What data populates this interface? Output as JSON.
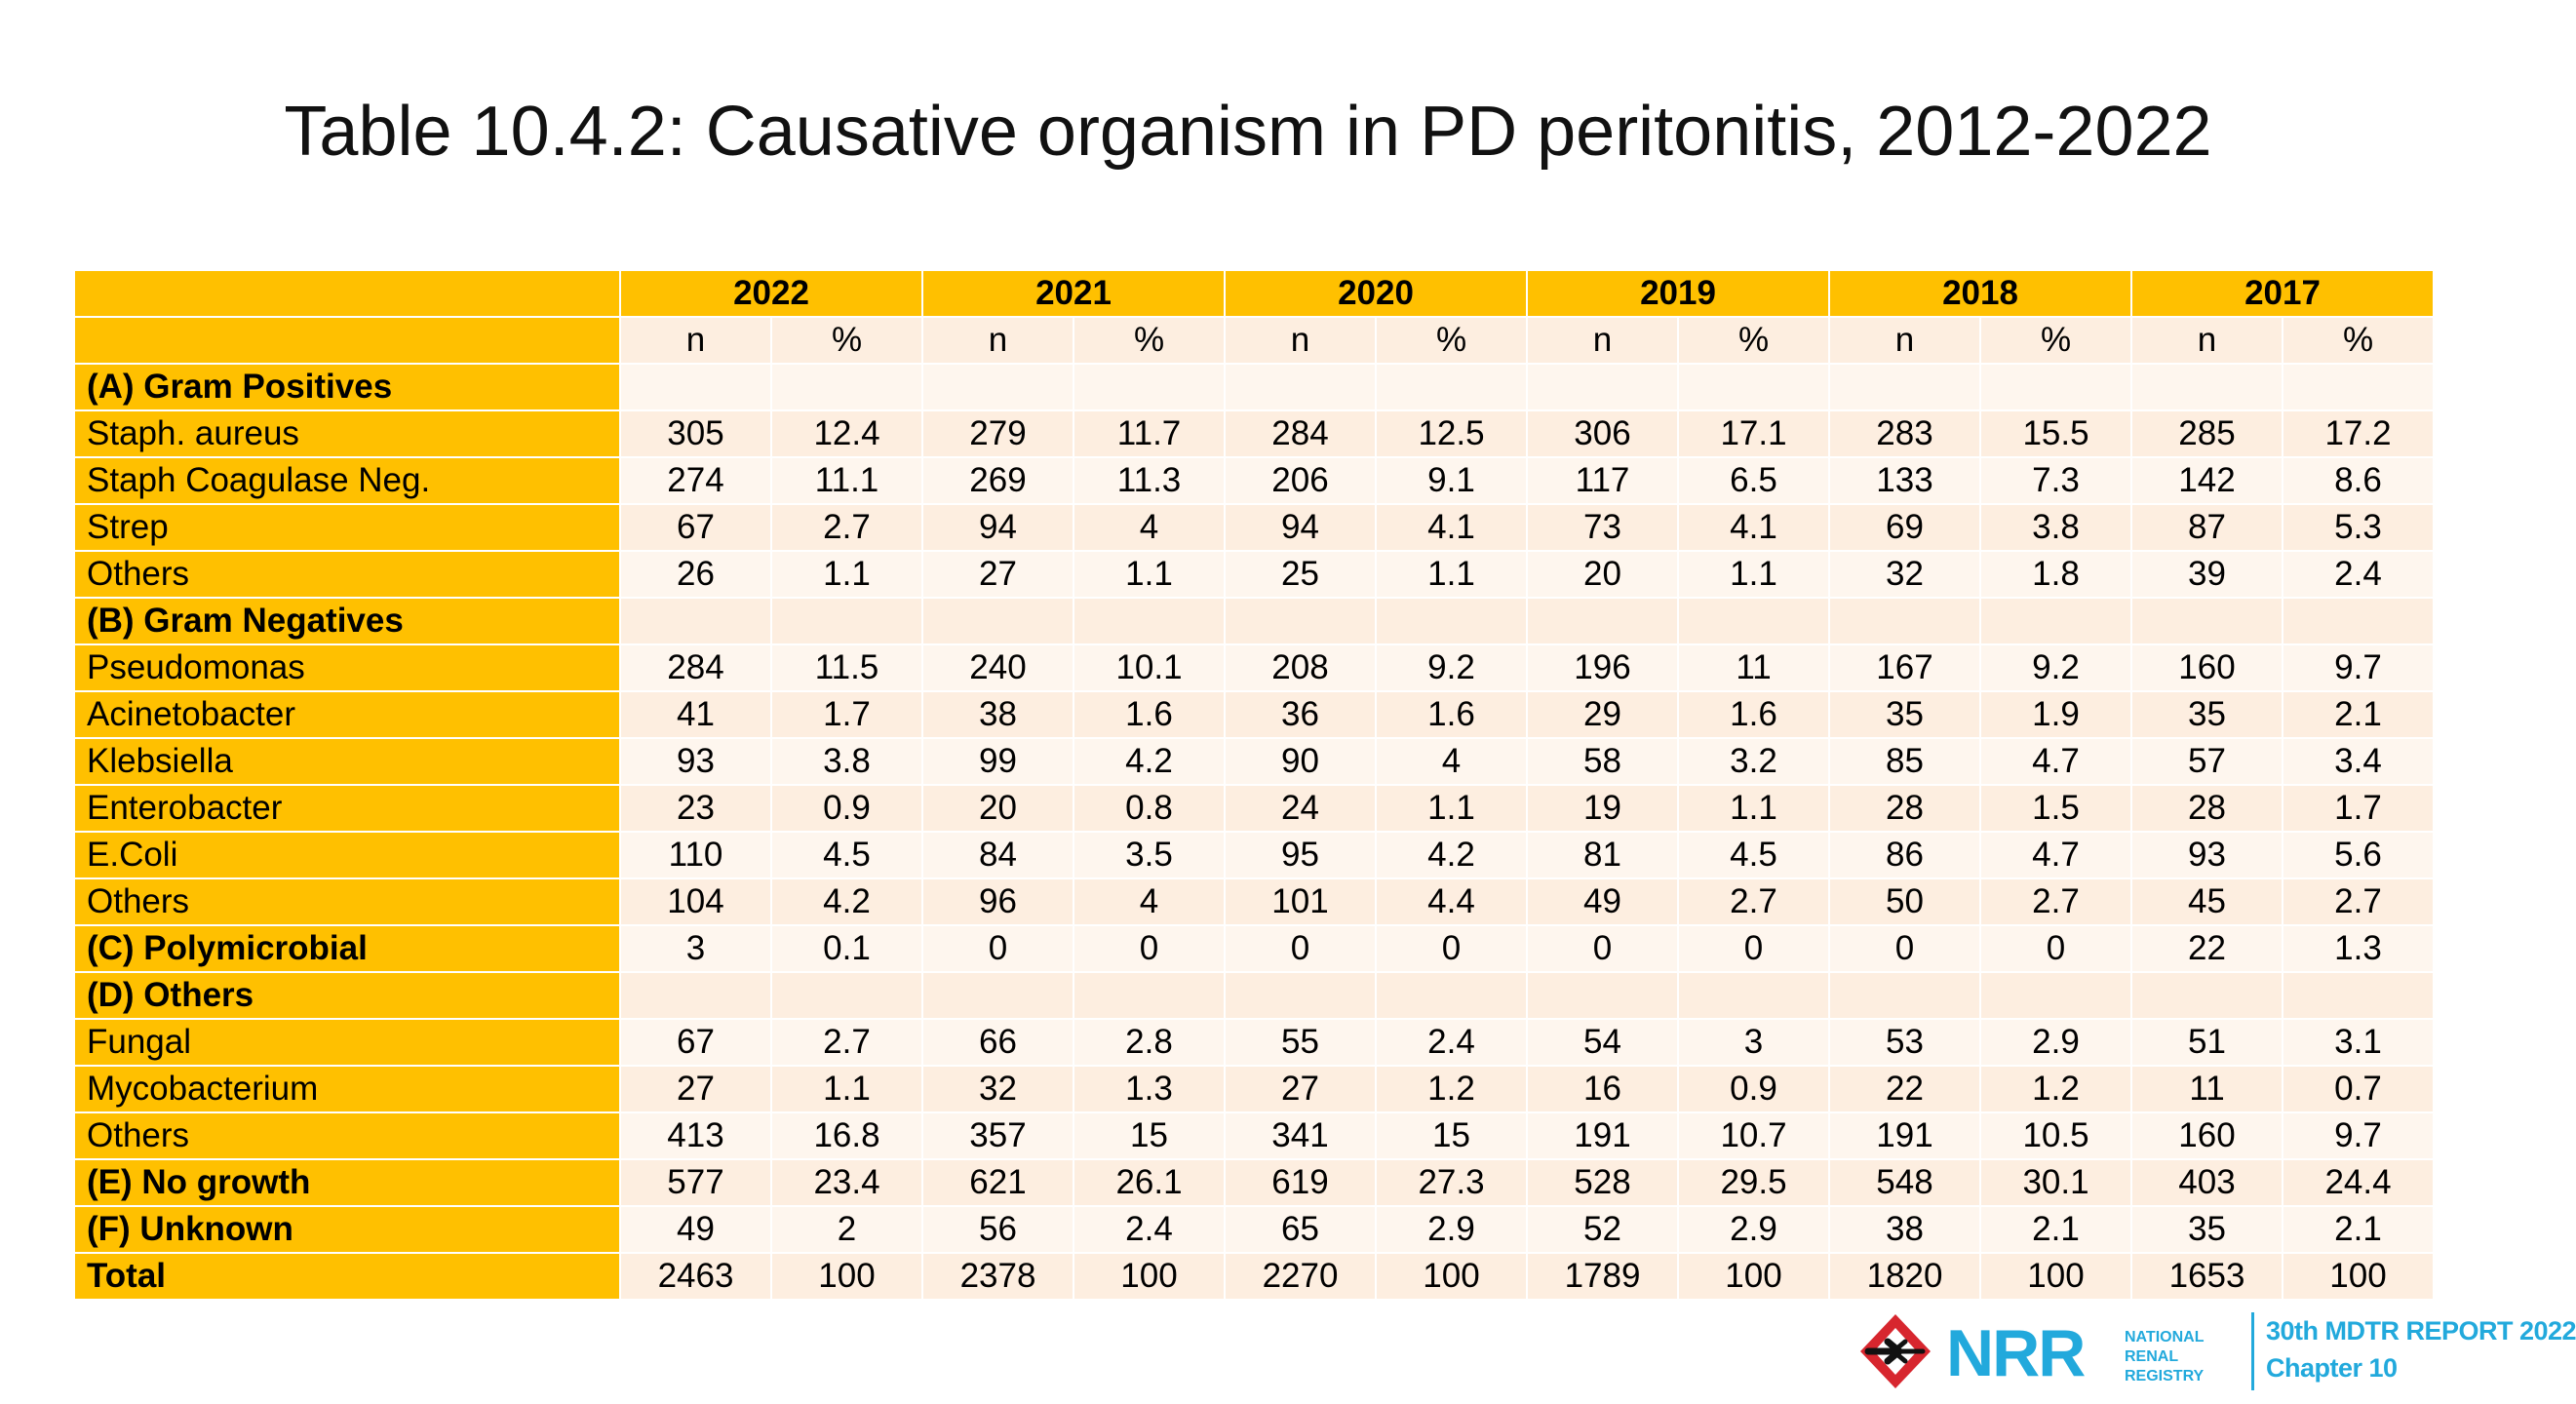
{
  "title": "Table 10.4.2: Causative organism in PD peritonitis, 2012-2022",
  "table": {
    "years": [
      "2022",
      "2021",
      "2020",
      "2019",
      "2018",
      "2017"
    ],
    "sub_n": "n",
    "sub_pct": "%",
    "rows": [
      {
        "label": "(A) Gram Positives",
        "bold": true,
        "values": [
          "",
          "",
          "",
          "",
          "",
          "",
          "",
          "",
          "",
          "",
          "",
          ""
        ]
      },
      {
        "label": "Staph. aureus",
        "bold": false,
        "values": [
          "305",
          "12.4",
          "279",
          "11.7",
          "284",
          "12.5",
          "306",
          "17.1",
          "283",
          "15.5",
          "285",
          "17.2"
        ]
      },
      {
        "label": "Staph Coagulase Neg.",
        "bold": false,
        "values": [
          "274",
          "11.1",
          "269",
          "11.3",
          "206",
          "9.1",
          "117",
          "6.5",
          "133",
          "7.3",
          "142",
          "8.6"
        ]
      },
      {
        "label": "Strep",
        "bold": false,
        "values": [
          "67",
          "2.7",
          "94",
          "4",
          "94",
          "4.1",
          "73",
          "4.1",
          "69",
          "3.8",
          "87",
          "5.3"
        ]
      },
      {
        "label": "Others",
        "bold": false,
        "values": [
          "26",
          "1.1",
          "27",
          "1.1",
          "25",
          "1.1",
          "20",
          "1.1",
          "32",
          "1.8",
          "39",
          "2.4"
        ]
      },
      {
        "label": "(B) Gram Negatives",
        "bold": true,
        "values": [
          "",
          "",
          "",
          "",
          "",
          "",
          "",
          "",
          "",
          "",
          "",
          ""
        ]
      },
      {
        "label": "Pseudomonas",
        "bold": false,
        "values": [
          "284",
          "11.5",
          "240",
          "10.1",
          "208",
          "9.2",
          "196",
          "11",
          "167",
          "9.2",
          "160",
          "9.7"
        ]
      },
      {
        "label": "Acinetobacter",
        "bold": false,
        "values": [
          "41",
          "1.7",
          "38",
          "1.6",
          "36",
          "1.6",
          "29",
          "1.6",
          "35",
          "1.9",
          "35",
          "2.1"
        ]
      },
      {
        "label": "Klebsiella",
        "bold": false,
        "values": [
          "93",
          "3.8",
          "99",
          "4.2",
          "90",
          "4",
          "58",
          "3.2",
          "85",
          "4.7",
          "57",
          "3.4"
        ]
      },
      {
        "label": "Enterobacter",
        "bold": false,
        "values": [
          "23",
          "0.9",
          "20",
          "0.8",
          "24",
          "1.1",
          "19",
          "1.1",
          "28",
          "1.5",
          "28",
          "1.7"
        ]
      },
      {
        "label": "E.Coli",
        "bold": false,
        "values": [
          "110",
          "4.5",
          "84",
          "3.5",
          "95",
          "4.2",
          "81",
          "4.5",
          "86",
          "4.7",
          "93",
          "5.6"
        ]
      },
      {
        "label": "Others",
        "bold": false,
        "values": [
          "104",
          "4.2",
          "96",
          "4",
          "101",
          "4.4",
          "49",
          "2.7",
          "50",
          "2.7",
          "45",
          "2.7"
        ]
      },
      {
        "label": "(C) Polymicrobial",
        "bold": true,
        "values": [
          "3",
          "0.1",
          "0",
          "0",
          "0",
          "0",
          "0",
          "0",
          "0",
          "0",
          "22",
          "1.3"
        ]
      },
      {
        "label": "(D) Others",
        "bold": true,
        "values": [
          "",
          "",
          "",
          "",
          "",
          "",
          "",
          "",
          "",
          "",
          "",
          ""
        ]
      },
      {
        "label": "Fungal",
        "bold": false,
        "values": [
          "67",
          "2.7",
          "66",
          "2.8",
          "55",
          "2.4",
          "54",
          "3",
          "53",
          "2.9",
          "51",
          "3.1"
        ]
      },
      {
        "label": "Mycobacterium",
        "bold": false,
        "values": [
          "27",
          "1.1",
          "32",
          "1.3",
          "27",
          "1.2",
          "16",
          "0.9",
          "22",
          "1.2",
          "11",
          "0.7"
        ]
      },
      {
        "label": "Others",
        "bold": false,
        "values": [
          "413",
          "16.8",
          "357",
          "15",
          "341",
          "15",
          "191",
          "10.7",
          "191",
          "10.5",
          "160",
          "9.7"
        ]
      },
      {
        "label": "(E) No growth",
        "bold": true,
        "values": [
          "577",
          "23.4",
          "621",
          "26.1",
          "619",
          "27.3",
          "528",
          "29.5",
          "548",
          "30.1",
          "403",
          "24.4"
        ]
      },
      {
        "label": "(F) Unknown",
        "bold": true,
        "values": [
          "49",
          "2",
          "56",
          "2.4",
          "65",
          "2.9",
          "52",
          "2.9",
          "38",
          "2.1",
          "35",
          "2.1"
        ]
      },
      {
        "label": "Total",
        "bold": true,
        "values": [
          "2463",
          "100",
          "2378",
          "100",
          "2270",
          "100",
          "1789",
          "100",
          "1820",
          "100",
          "1653",
          "100"
        ]
      }
    ]
  },
  "footer": {
    "logo_letters": "NRR",
    "logo_lines": [
      "NATIONAL",
      "RENAL",
      "REGISTRY"
    ],
    "report_title": "30th MDTR REPORT 2022",
    "chapter": "Chapter 10"
  },
  "colors": {
    "header_gold": "#ffc000",
    "cell_peach": "#fdeee0",
    "cell_light": "#fef6ee",
    "brand_blue": "#22a9dc",
    "logo_red": "#d7262e"
  },
  "icons": {
    "registry_mark": "nrr-emblem-icon"
  }
}
